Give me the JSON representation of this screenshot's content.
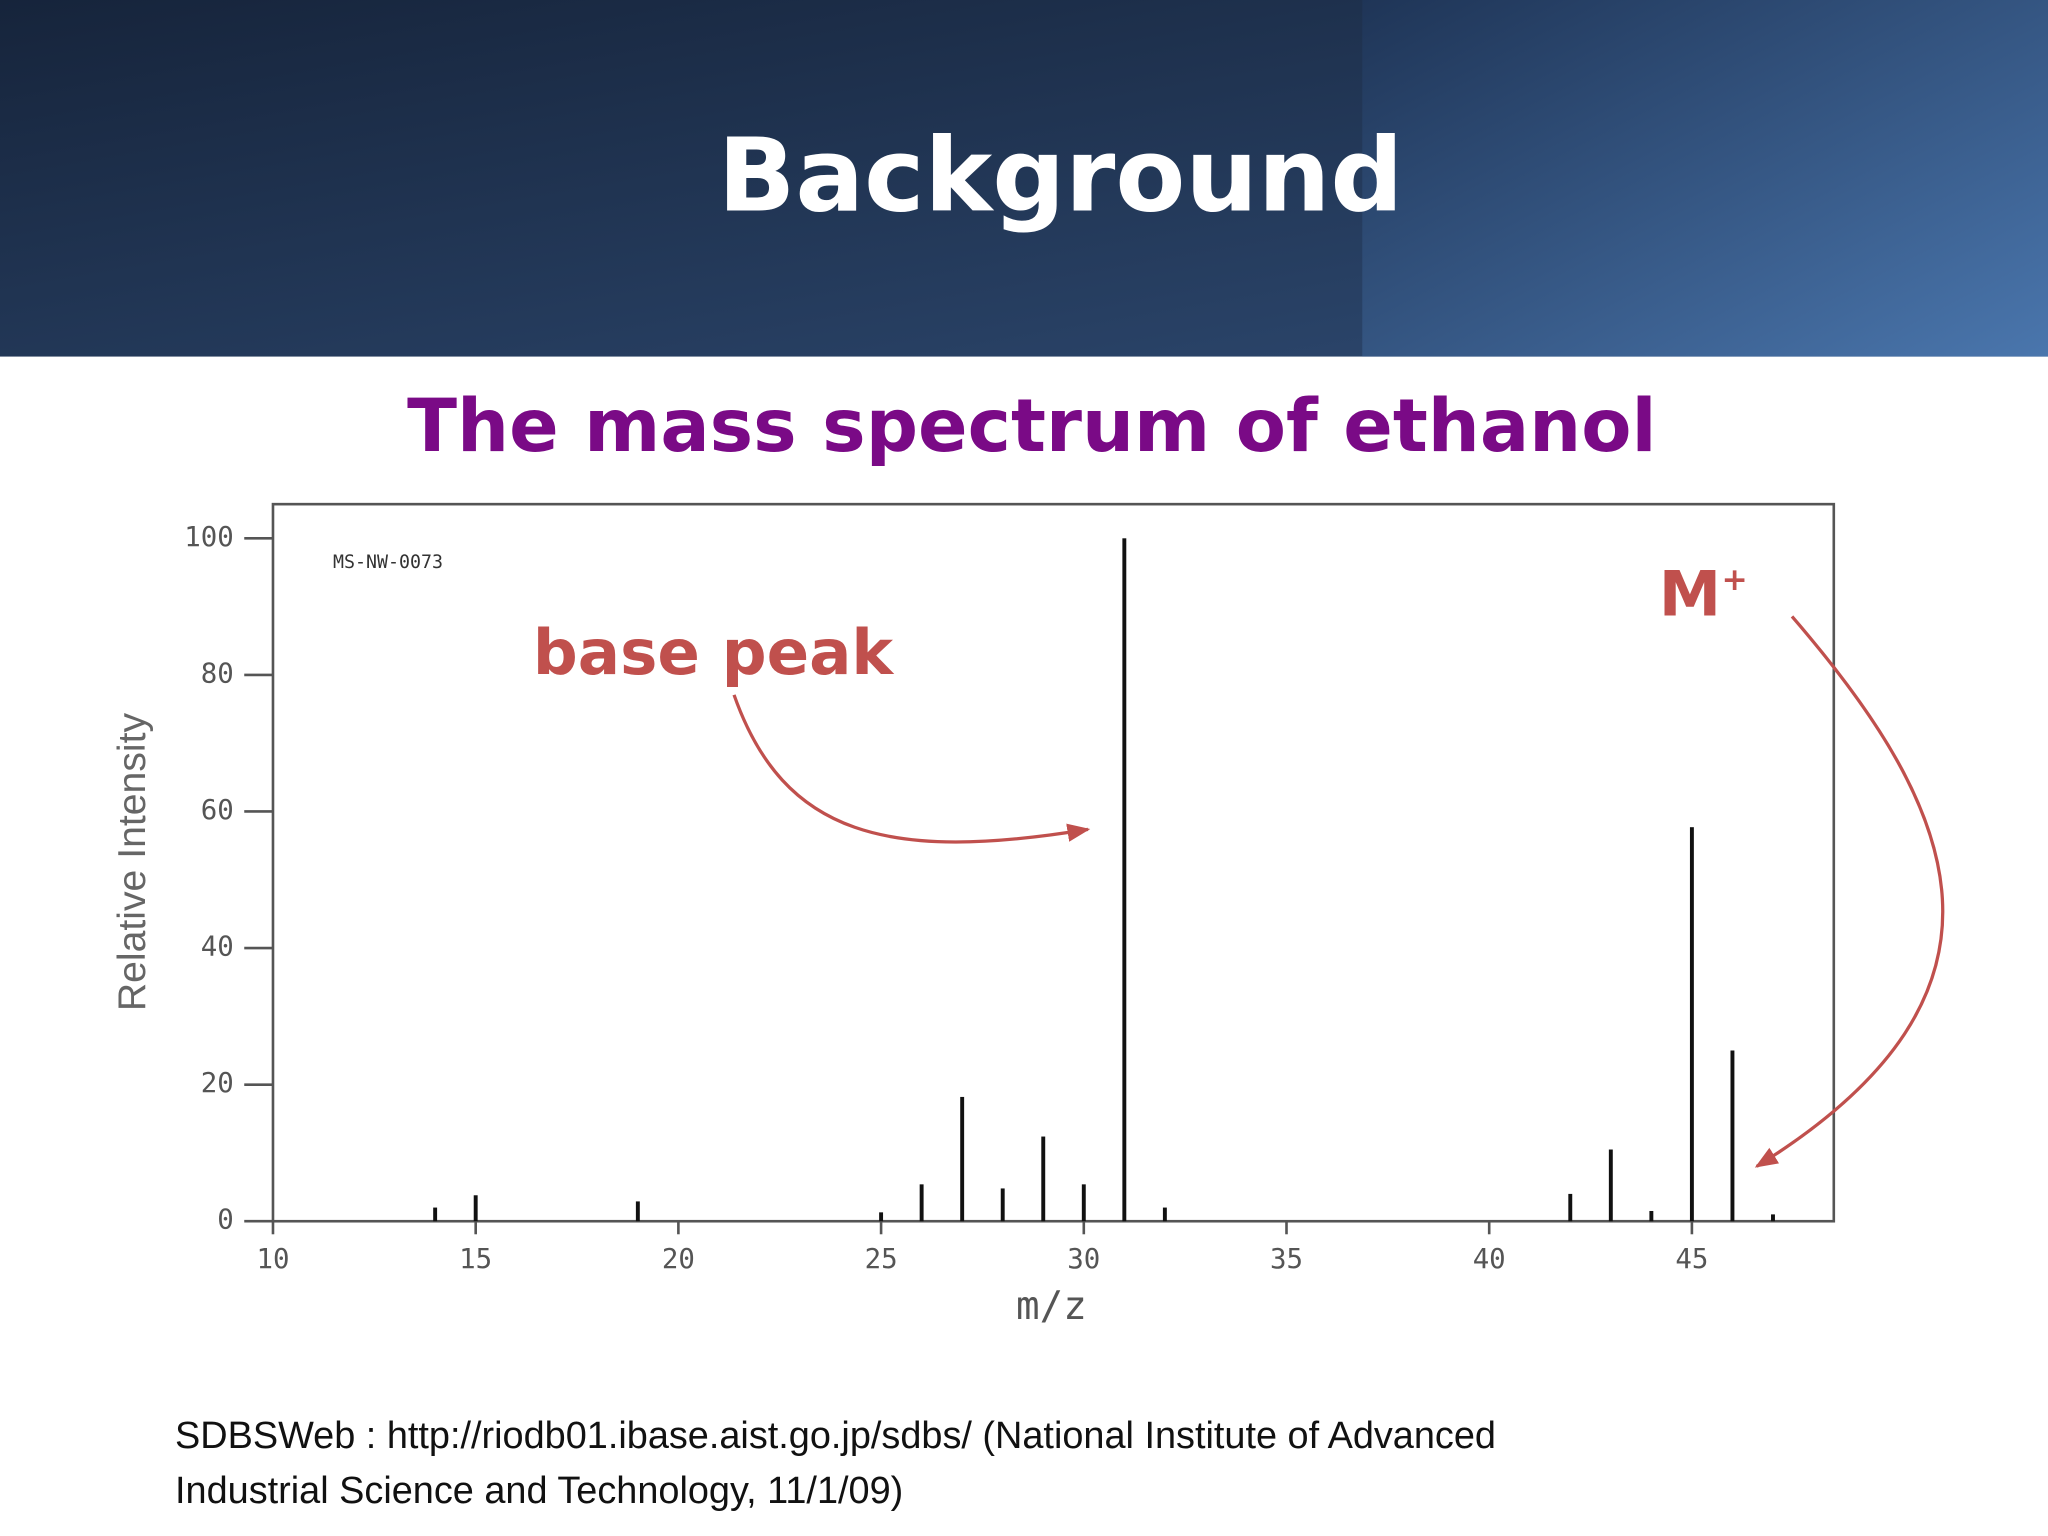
{
  "header": {
    "title": "Background"
  },
  "chart_data": {
    "type": "bar",
    "title": "The mass spectrum of ethanol",
    "x_label": "m/z",
    "y_label": "Relative Intensity",
    "x": [
      14,
      15,
      19,
      25,
      26,
      27,
      28,
      29,
      30,
      31,
      32,
      42,
      43,
      44,
      45,
      46,
      47
    ],
    "values": [
      2,
      3.8,
      2.9,
      1.3,
      5.4,
      18.2,
      4.8,
      12.4,
      5.4,
      100,
      2,
      4,
      10.5,
      1.5,
      57.7,
      25,
      1
    ],
    "color": "#111111",
    "xlim": [
      10,
      48.5
    ],
    "ylim": [
      0,
      105
    ],
    "xticks": [
      10,
      15,
      20,
      25,
      30,
      35,
      40,
      45
    ],
    "yticks": [
      0,
      20,
      40,
      60,
      80,
      100
    ],
    "annotations": {
      "code": "MS-NW-0073",
      "base_peak": "base peak",
      "molecular_ion": "M",
      "molecular_ion_sup": "+"
    }
  },
  "footer": {
    "lines": [
      "SDBSWeb : http://riodb01.ibase.aist.go.jp/sdbs/ (National Institute of Advanced",
      "Industrial Science and Technology, 11/1/09)"
    ]
  }
}
